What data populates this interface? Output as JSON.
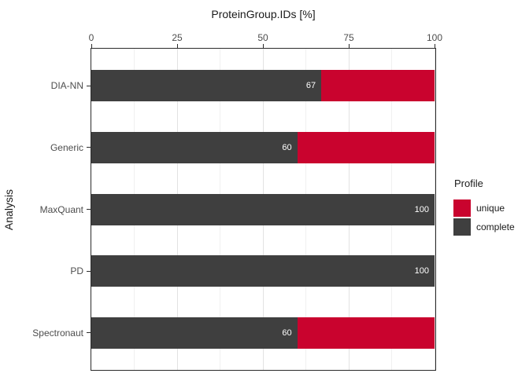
{
  "figure": {
    "title": "ProteinGroup.IDs [%]",
    "y_axis_title": "Analysis"
  },
  "legend": {
    "title": "Profile",
    "items": [
      {
        "label": "unique",
        "color": "#C9032E"
      },
      {
        "label": "complete",
        "color": "#3F3F3F"
      }
    ]
  },
  "chart_data": {
    "type": "bar",
    "orientation": "horizontal",
    "stacked": true,
    "title": "ProteinGroup.IDs [%]",
    "xlabel": "",
    "ylabel": "Analysis",
    "xlim": [
      0,
      100
    ],
    "x_ticks": [
      0,
      25,
      50,
      75,
      100
    ],
    "x_minor_gridlines": [
      12.5,
      37.5,
      62.5,
      87.5
    ],
    "grid": true,
    "legend_position": "right",
    "legend_title": "Profile",
    "categories": [
      "DIA-NN",
      "Generic",
      "MaxQuant",
      "PD",
      "Spectronaut"
    ],
    "series": [
      {
        "name": "complete",
        "color": "#3F3F3F",
        "values": [
          67,
          60,
          100,
          100,
          60
        ]
      },
      {
        "name": "unique",
        "color": "#C9032E",
        "values": [
          33,
          40,
          0,
          0,
          40
        ]
      }
    ],
    "bar_value_labels": {
      "series": "complete",
      "values": [
        "67",
        "60",
        "100",
        "100",
        "60"
      ],
      "color": "#FFFFFF"
    }
  },
  "colors": {
    "panel_border": "#2B2B2B",
    "grid_major": "#E2E2E2",
    "grid_minor": "#F0F0F0",
    "axis_text": "#4D4D4D",
    "title_text": "#1A1A1A",
    "background": "#FFFFFF"
  }
}
